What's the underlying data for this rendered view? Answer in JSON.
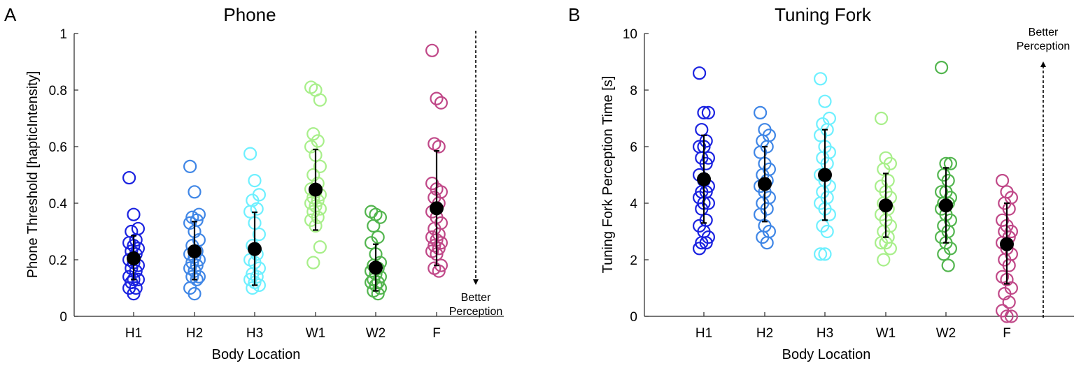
{
  "colors": {
    "H1": "#1a22e0",
    "H2": "#3f86e6",
    "H3": "#6ef0ff",
    "W1": "#a8ef8a",
    "W2": "#52b54e",
    "F": "#c04888",
    "mean": "#000000",
    "axis": "#262626"
  },
  "chart_data": [
    {
      "type": "scatter",
      "panel": "A",
      "title": "Phone",
      "xlabel": "Body Location",
      "ylabel": "Phone Threshold [hapticIntensity]",
      "categories": [
        "H1",
        "H2",
        "H3",
        "W1",
        "W2",
        "F"
      ],
      "ylim": [
        0,
        1
      ],
      "yticks": [
        "0",
        "0.2",
        "0.4",
        "0.6",
        "0.8",
        "1"
      ],
      "ytick_values": [
        0,
        0.2,
        0.4,
        0.6,
        0.8,
        1
      ],
      "annotation": {
        "line1": "Better",
        "line2": "Perception",
        "arrow": "down"
      },
      "series": [
        {
          "name": "H1",
          "mean": 0.205,
          "error_low": 0.13,
          "error_high": 0.285,
          "values": [
            0.49,
            0.36,
            0.31,
            0.3,
            0.27,
            0.26,
            0.25,
            0.24,
            0.23,
            0.22,
            0.2,
            0.19,
            0.18,
            0.17,
            0.16,
            0.14,
            0.13,
            0.13,
            0.12,
            0.1,
            0.1,
            0.08
          ]
        },
        {
          "name": "H2",
          "mean": 0.23,
          "error_low": 0.13,
          "error_high": 0.335,
          "values": [
            0.53,
            0.44,
            0.36,
            0.35,
            0.34,
            0.33,
            0.3,
            0.27,
            0.25,
            0.23,
            0.22,
            0.21,
            0.2,
            0.19,
            0.18,
            0.17,
            0.16,
            0.14,
            0.14,
            0.13,
            0.1,
            0.08
          ]
        },
        {
          "name": "H3",
          "mean": 0.238,
          "error_low": 0.11,
          "error_high": 0.368,
          "values": [
            0.575,
            0.48,
            0.43,
            0.41,
            0.38,
            0.37,
            0.33,
            0.29,
            0.25,
            0.22,
            0.2,
            0.19,
            0.17,
            0.15,
            0.14,
            0.13,
            0.12,
            0.11,
            0.1
          ]
        },
        {
          "name": "W1",
          "mean": 0.448,
          "error_low": 0.305,
          "error_high": 0.59,
          "values": [
            0.81,
            0.8,
            0.765,
            0.645,
            0.62,
            0.6,
            0.57,
            0.53,
            0.5,
            0.47,
            0.45,
            0.44,
            0.43,
            0.42,
            0.41,
            0.4,
            0.39,
            0.38,
            0.37,
            0.35,
            0.34,
            0.32,
            0.245,
            0.19
          ]
        },
        {
          "name": "W2",
          "mean": 0.172,
          "error_low": 0.09,
          "error_high": 0.255,
          "values": [
            0.37,
            0.36,
            0.35,
            0.32,
            0.28,
            0.26,
            0.22,
            0.19,
            0.18,
            0.17,
            0.16,
            0.15,
            0.14,
            0.13,
            0.12,
            0.12,
            0.11,
            0.1,
            0.09,
            0.08
          ]
        },
        {
          "name": "F",
          "mean": 0.382,
          "error_low": 0.18,
          "error_high": 0.585,
          "values": [
            0.94,
            0.77,
            0.755,
            0.61,
            0.6,
            0.47,
            0.45,
            0.44,
            0.42,
            0.4,
            0.37,
            0.35,
            0.33,
            0.31,
            0.29,
            0.28,
            0.27,
            0.26,
            0.25,
            0.24,
            0.23,
            0.22,
            0.18,
            0.17,
            0.16
          ]
        }
      ]
    },
    {
      "type": "scatter",
      "panel": "B",
      "title": "Tuning Fork",
      "xlabel": "Body Location",
      "ylabel": "Tuning Fork Perception Time [s]",
      "categories": [
        "H1",
        "H2",
        "H3",
        "W1",
        "W2",
        "F"
      ],
      "ylim": [
        0,
        10
      ],
      "yticks": [
        "0",
        "2",
        "4",
        "6",
        "8",
        "10"
      ],
      "ytick_values": [
        0,
        2,
        4,
        6,
        8,
        10
      ],
      "annotation": {
        "line1": "Better",
        "line2": "Perception",
        "arrow": "up"
      },
      "series": [
        {
          "name": "H1",
          "mean": 4.85,
          "error_low": 3.3,
          "error_high": 6.4,
          "values": [
            8.6,
            7.2,
            7.2,
            6.6,
            6.2,
            6.0,
            6.0,
            5.6,
            5.6,
            5.4,
            5.0,
            4.8,
            4.6,
            4.4,
            4.4,
            4.2,
            4.0,
            4.0,
            3.8,
            3.4,
            3.2,
            3.0,
            2.8,
            2.6,
            2.6,
            2.4
          ]
        },
        {
          "name": "H2",
          "mean": 4.68,
          "error_low": 3.35,
          "error_high": 6.0,
          "values": [
            7.2,
            6.6,
            6.4,
            6.2,
            6.0,
            5.8,
            5.4,
            5.2,
            5.0,
            4.8,
            4.6,
            4.4,
            4.2,
            4.0,
            3.8,
            3.6,
            3.2,
            3.0,
            2.8,
            2.6
          ]
        },
        {
          "name": "H3",
          "mean": 5.0,
          "error_low": 3.4,
          "error_high": 6.6,
          "values": [
            8.4,
            7.6,
            7.0,
            6.8,
            6.6,
            6.4,
            6.0,
            5.8,
            5.6,
            5.4,
            5.0,
            4.8,
            4.6,
            4.4,
            4.2,
            4.0,
            3.8,
            3.6,
            3.2,
            3.0,
            2.2,
            2.2
          ]
        },
        {
          "name": "W1",
          "mean": 3.92,
          "error_low": 2.8,
          "error_high": 5.05,
          "values": [
            7.0,
            5.6,
            5.4,
            5.2,
            4.8,
            4.6,
            4.4,
            4.2,
            4.0,
            3.8,
            3.6,
            3.4,
            3.2,
            3.0,
            2.8,
            2.6,
            2.6,
            2.4,
            2.0
          ]
        },
        {
          "name": "W2",
          "mean": 3.92,
          "error_low": 2.6,
          "error_high": 5.25,
          "values": [
            8.8,
            5.4,
            5.4,
            5.0,
            4.8,
            4.4,
            4.4,
            4.2,
            4.0,
            4.0,
            3.8,
            3.6,
            3.4,
            3.2,
            3.0,
            2.8,
            2.6,
            2.4,
            2.2,
            1.8
          ]
        },
        {
          "name": "F",
          "mean": 2.55,
          "error_low": 1.15,
          "error_high": 4.0,
          "values": [
            4.8,
            4.4,
            4.2,
            4.0,
            3.8,
            3.4,
            3.2,
            3.0,
            3.0,
            2.8,
            2.6,
            2.4,
            2.2,
            2.0,
            1.8,
            1.4,
            1.3,
            1.0,
            0.8,
            0.5,
            0.2,
            0.0,
            0.0
          ]
        }
      ]
    }
  ]
}
